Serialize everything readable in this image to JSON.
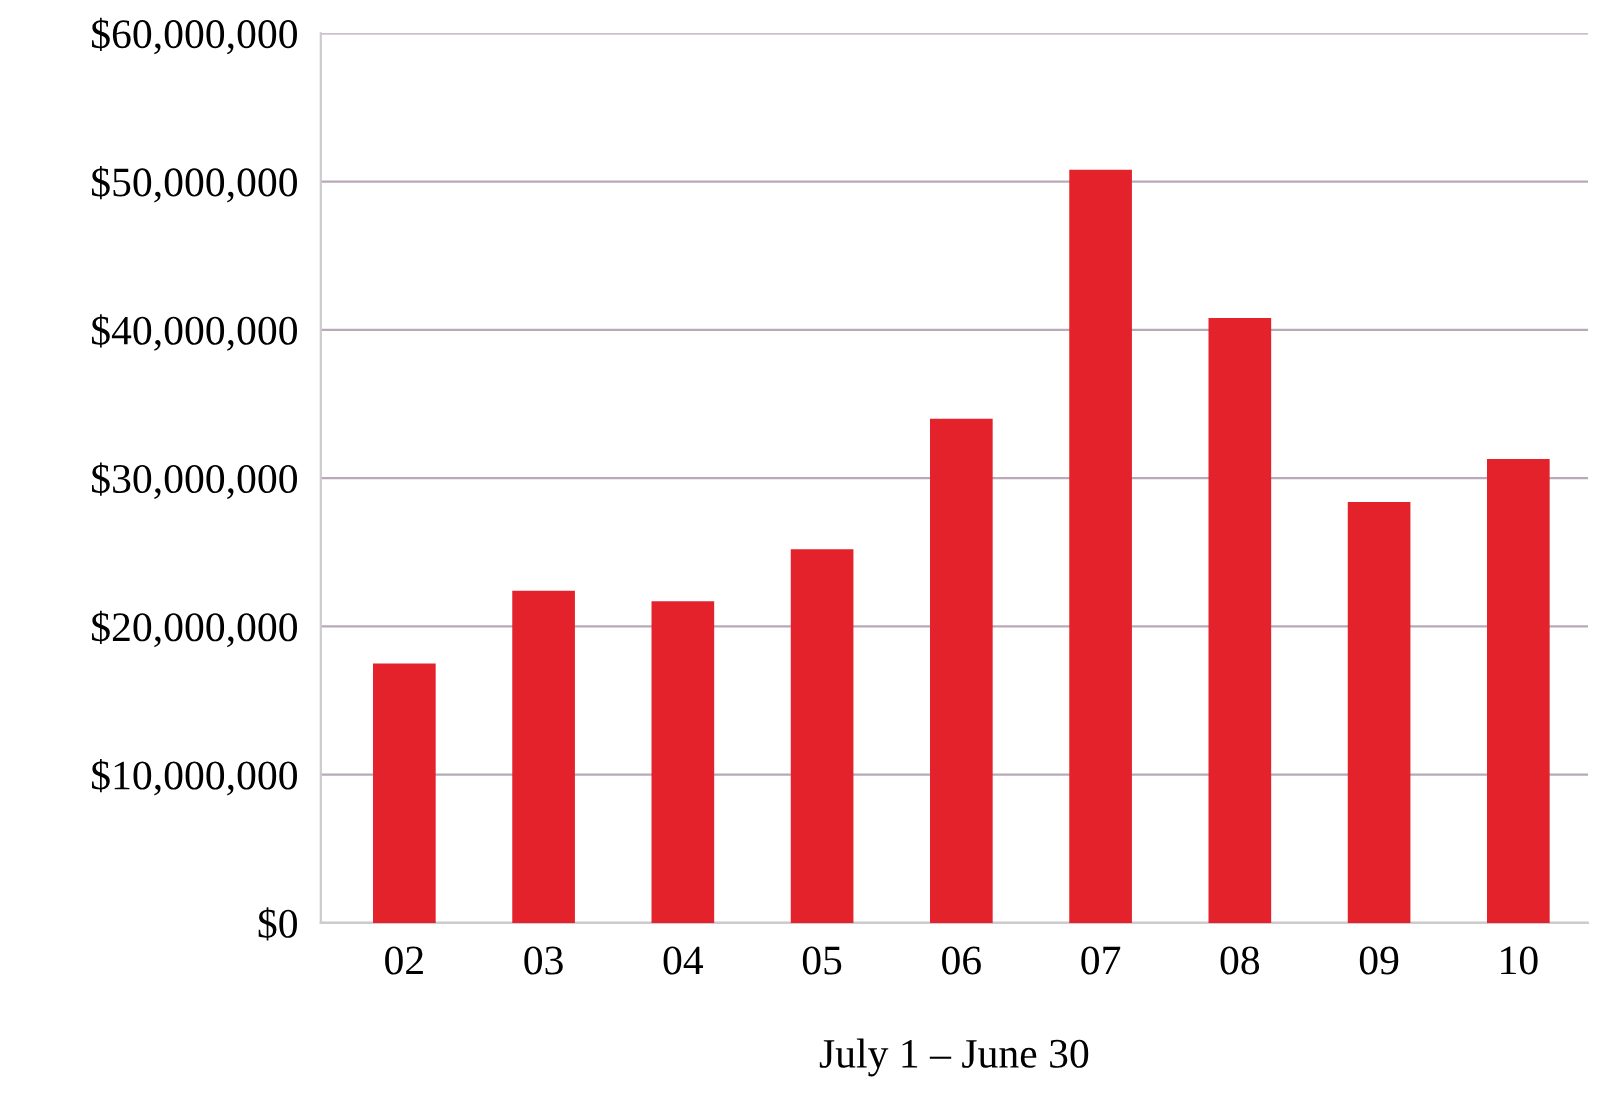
{
  "chart_data": {
    "type": "bar",
    "xlabel": "July 1 – June 30",
    "categories": [
      "02",
      "03",
      "04",
      "05",
      "06",
      "07",
      "08",
      "09",
      "10"
    ],
    "values": [
      17500000,
      22400000,
      21700000,
      25200000,
      34000000,
      50800000,
      40800000,
      28400000,
      31300000
    ],
    "color": "#e3222c",
    "ylim": [
      0,
      60000000
    ],
    "yticks": [
      {
        "value": 0,
        "label": "$0"
      },
      {
        "value": 10000000,
        "label": "$10,000,000"
      },
      {
        "value": 20000000,
        "label": "$20,000,000"
      },
      {
        "value": 30000000,
        "label": "$30,000,000"
      },
      {
        "value": 40000000,
        "label": "$40,000,000"
      },
      {
        "value": 50000000,
        "label": "$50,000,000"
      },
      {
        "value": 60000000,
        "label": "$60,000,000"
      }
    ],
    "grid": "y"
  }
}
